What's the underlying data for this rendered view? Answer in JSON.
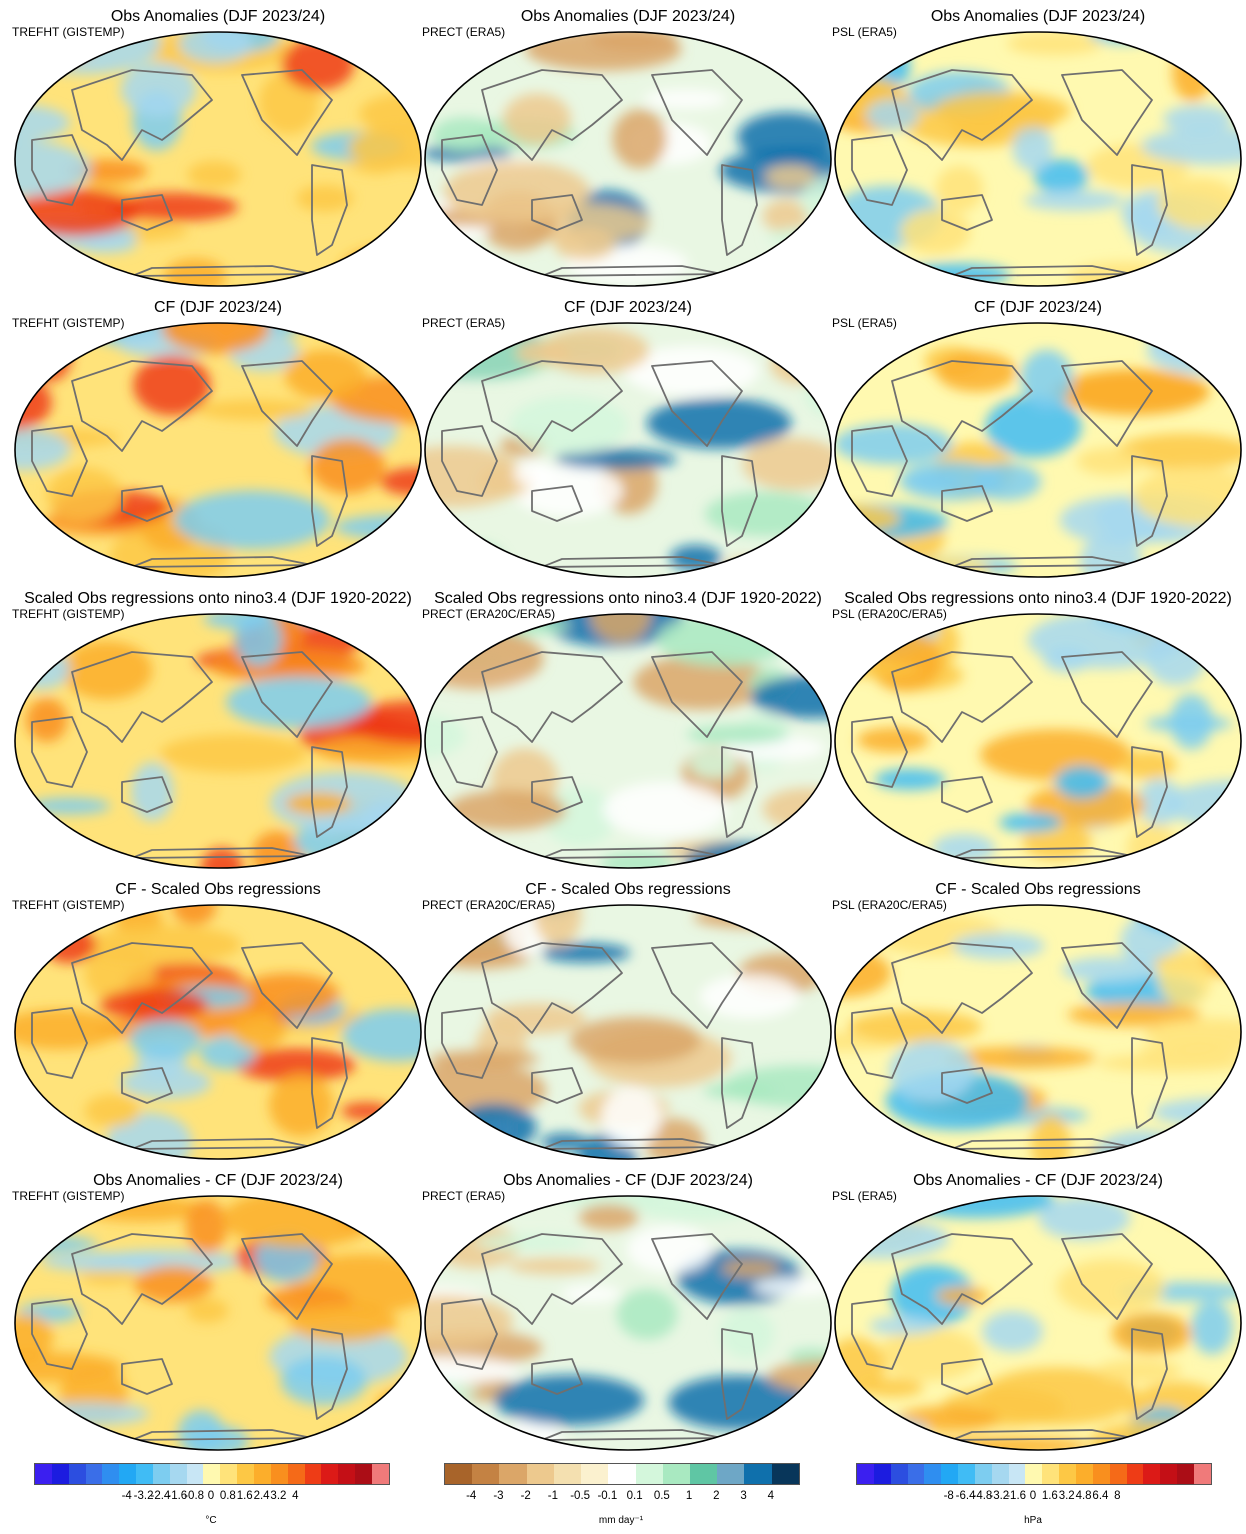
{
  "rows": [
    {
      "title": "Obs Anomalies (DJF 2023/24)"
    },
    {
      "title": "CF (DJF 2023/24)"
    },
    {
      "title": "Scaled Obs regressions onto nino3.4 (DJF 1920-2022)"
    },
    {
      "title": "CF - Scaled Obs regressions"
    },
    {
      "title": "Obs Anomalies - CF (DJF 2023/24)"
    }
  ],
  "subtitles": [
    [
      "TREFHT (GISTEMP)",
      "PRECT (ERA5)",
      "PSL (ERA5)"
    ],
    [
      "TREFHT (GISTEMP)",
      "PRECT (ERA5)",
      "PSL (ERA5)"
    ],
    [
      "TREFHT (GISTEMP)",
      "PRECT (ERA20C/ERA5)",
      "PSL (ERA20C/ERA5)"
    ],
    [
      "TREFHT (GISTEMP)",
      "PRECT (ERA20C/ERA5)",
      "PSL (ERA20C/ERA5)"
    ],
    [
      "TREFHT (GISTEMP)",
      "PRECT (ERA5)",
      "PSL (ERA5)"
    ]
  ],
  "colorbars": [
    {
      "unit": "°C",
      "ticks": [
        "-4",
        "-3.2",
        "-2.4",
        "-1.6",
        "-0.8",
        "0",
        "0.8",
        "1.6",
        "2.4",
        "3.2",
        "4"
      ],
      "colors": [
        "#3b1ff0",
        "#1c1ce0",
        "#2c4ee0",
        "#3a6ee8",
        "#2f8ef0",
        "#22a8f4",
        "#40bcf5",
        "#7dcdf0",
        "#a6d8f0",
        "#c8e6f5",
        "#fff9b0",
        "#ffe37a",
        "#fdc845",
        "#fcae2b",
        "#f98f1e",
        "#f56a18",
        "#ee3c16",
        "#dc1a17",
        "#c40f16",
        "#ab0d16",
        "#f07a7a"
      ]
    },
    {
      "unit": "mm day⁻¹",
      "ticks": [
        "-4",
        "-3",
        "-2",
        "-1",
        "-0.5",
        "-0.1",
        "0.1",
        "0.5",
        "1",
        "2",
        "3",
        "4"
      ],
      "colors": [
        "#a8642a",
        "#c48243",
        "#dba668",
        "#edc98e",
        "#f4e0b0",
        "#fbf1cf",
        "#ffffff",
        "#d4f7dc",
        "#a9e9c1",
        "#5fc6a4",
        "#6ea7c6",
        "#0f70ac",
        "#08365a"
      ]
    },
    {
      "unit": "hPa",
      "ticks": [
        "-8",
        "-6.4",
        "-4.8",
        "-3.2",
        "-1.6",
        "0",
        "1.6",
        "3.2",
        "4.8",
        "6.4",
        "8"
      ],
      "colors": [
        "#3b1ff0",
        "#1c1ce0",
        "#2c4ee0",
        "#3a6ee8",
        "#2f8ef0",
        "#22a8f4",
        "#40bcf5",
        "#7dcdf0",
        "#a6d8f0",
        "#c8e6f5",
        "#fff9b0",
        "#ffe37a",
        "#fdc845",
        "#fcae2b",
        "#f98f1e",
        "#f56a18",
        "#ee3c16",
        "#dc1a17",
        "#c40f16",
        "#ab0d16",
        "#f07a7a"
      ]
    }
  ]
}
